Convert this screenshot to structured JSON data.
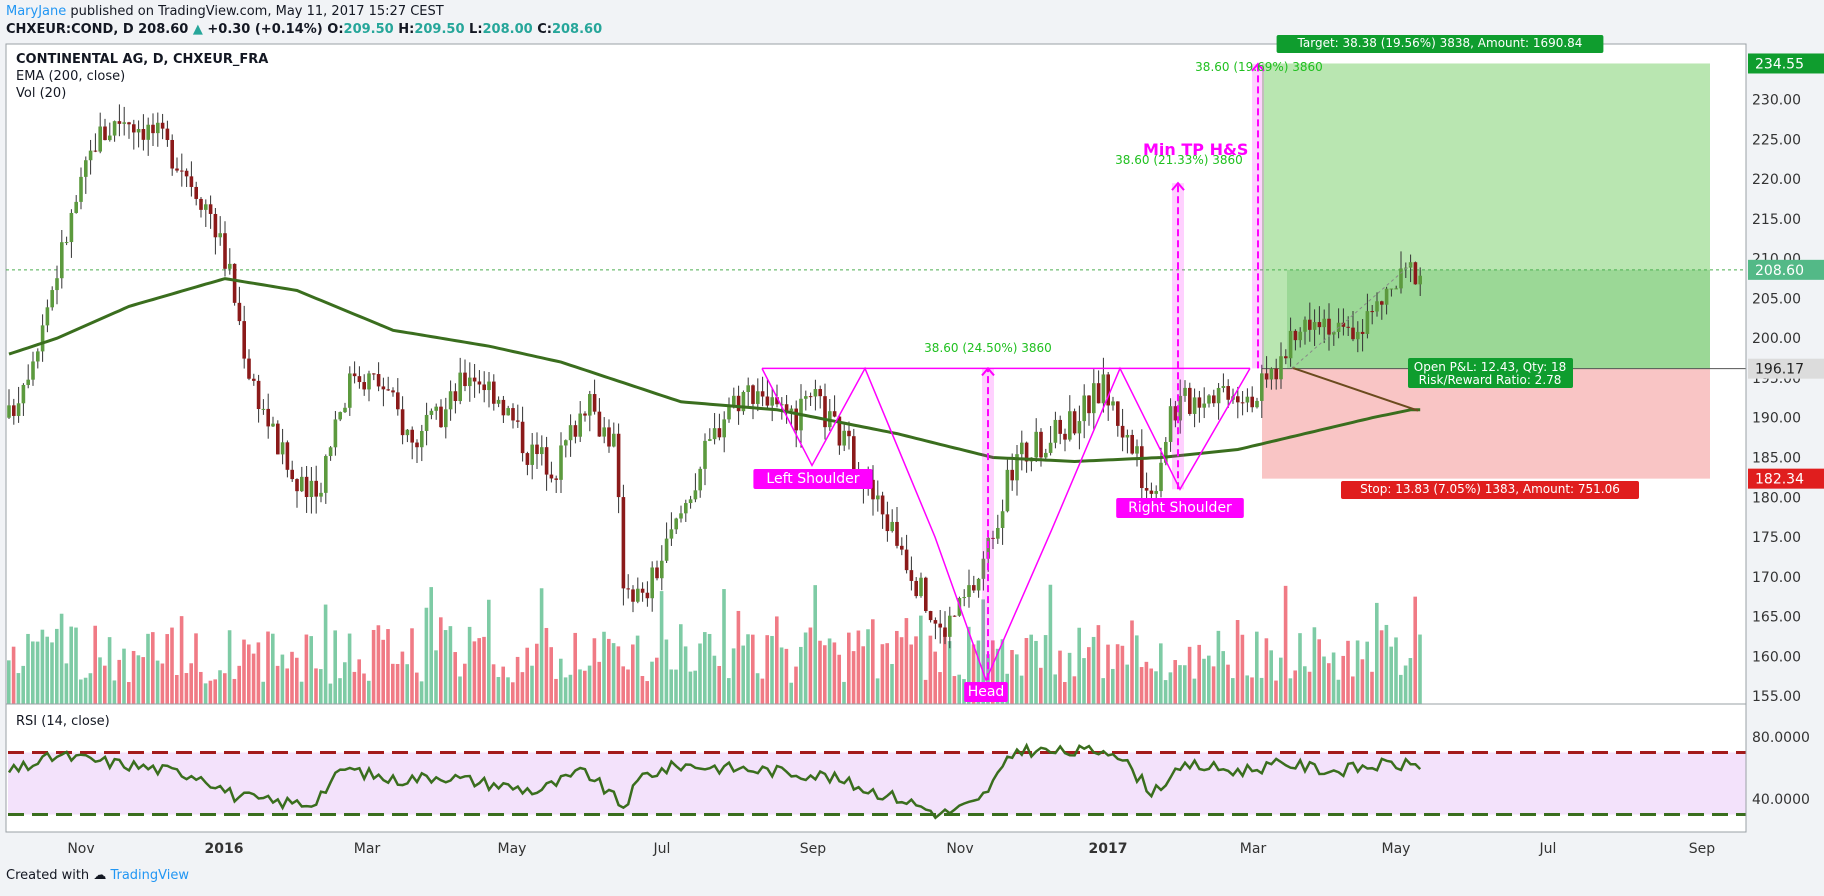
{
  "header": {
    "author": "MaryJane",
    "published": "published on TradingView.com, May 11, 2017 15:27 CEST",
    "symbol": "CHXEUR:COND, D",
    "last": "208.60",
    "change_arrow": "▲",
    "change": "+0.30 (+0.14%)",
    "o_label": "O:",
    "o": "209.50",
    "h_label": "H:",
    "h": "209.50",
    "l_label": "L:",
    "l": "208.00",
    "c_label": "C:",
    "c": "208.60"
  },
  "legend": {
    "title": "CONTINENTAL AG, D, CHXEUR_FRA",
    "ema": "EMA (200, close)",
    "vol": "Vol (20)",
    "rsi": "RSI (14, close)"
  },
  "footer": {
    "created": "Created with",
    "brand": "TradingView"
  },
  "colors": {
    "up": "#53b987",
    "down": "#eb4d5c",
    "candle_up": "#5c9a3e",
    "candle_down": "#8b1a1a",
    "ema": "#3a6e1e",
    "pattern": "#ff00ff",
    "target_zone": "#b9e6b1",
    "stop_zone": "#f9c5c5",
    "rsi_band": "#f3e2fb",
    "rsi_upper": "#a31b1b",
    "rsi_lower": "#3a6e1e"
  },
  "chart_data": {
    "type": "candlestick",
    "title": "CONTINENTAL AG, D, CHXEUR_FRA",
    "x_ticks": [
      "Nov",
      "2016",
      "Mar",
      "May",
      "Jul",
      "Sep",
      "Nov",
      "2017",
      "Mar",
      "May",
      "Jul",
      "Sep"
    ],
    "y_ticks": [
      "155.00",
      "160.00",
      "165.00",
      "170.00",
      "175.00",
      "180.00",
      "185.00",
      "190.00",
      "195.00",
      "200.00",
      "205.00",
      "210.00",
      "215.00",
      "220.00",
      "225.00",
      "230.00"
    ],
    "ylim": [
      154,
      237
    ],
    "price_path": [
      [
        0,
        190
      ],
      [
        6,
        200
      ],
      [
        12,
        213
      ],
      [
        18,
        225
      ],
      [
        24,
        228
      ],
      [
        30,
        226
      ],
      [
        36,
        222
      ],
      [
        42,
        216
      ],
      [
        46,
        208
      ],
      [
        50,
        196
      ],
      [
        55,
        188
      ],
      [
        60,
        181
      ],
      [
        64,
        180
      ],
      [
        68,
        190
      ],
      [
        72,
        196
      ],
      [
        78,
        194
      ],
      [
        84,
        187
      ],
      [
        90,
        190
      ],
      [
        96,
        196
      ],
      [
        102,
        193
      ],
      [
        108,
        186
      ],
      [
        114,
        184
      ],
      [
        120,
        192
      ],
      [
        126,
        187
      ],
      [
        128,
        170
      ],
      [
        132,
        167
      ],
      [
        138,
        175
      ],
      [
        144,
        184
      ],
      [
        150,
        192
      ],
      [
        156,
        194
      ],
      [
        162,
        189
      ],
      [
        168,
        192
      ],
      [
        174,
        187
      ],
      [
        180,
        180
      ],
      [
        186,
        174
      ],
      [
        190,
        168
      ],
      [
        194,
        163
      ],
      [
        198,
        166
      ],
      [
        202,
        170
      ],
      [
        206,
        178
      ],
      [
        210,
        185
      ],
      [
        216,
        187
      ],
      [
        222,
        190
      ],
      [
        228,
        194
      ],
      [
        234,
        186
      ],
      [
        238,
        180
      ],
      [
        242,
        191
      ],
      [
        248,
        193
      ],
      [
        254,
        194
      ],
      [
        260,
        193
      ],
      [
        266,
        198
      ],
      [
        272,
        204
      ],
      [
        278,
        200
      ],
      [
        284,
        203
      ],
      [
        288,
        206
      ],
      [
        292,
        208.6
      ]
    ],
    "ema_path": [
      [
        0,
        198
      ],
      [
        10,
        200
      ],
      [
        25,
        204
      ],
      [
        45,
        207.5
      ],
      [
        60,
        206
      ],
      [
        80,
        201
      ],
      [
        100,
        199
      ],
      [
        115,
        197
      ],
      [
        140,
        192
      ],
      [
        160,
        191
      ],
      [
        185,
        188
      ],
      [
        205,
        185
      ],
      [
        222,
        184.5
      ],
      [
        240,
        185
      ],
      [
        256,
        186
      ],
      [
        270,
        188
      ],
      [
        284,
        190
      ],
      [
        292,
        191
      ]
    ],
    "last_price": "208.60",
    "neckline_price": "196.17",
    "stop_price": "182.34",
    "target_price": "234.55",
    "rsi_ticks": [
      "80.0000",
      "40.0000"
    ],
    "rsi_ylim": [
      20,
      100
    ],
    "rsi_levels": [
      70,
      30
    ],
    "rsi_path": [
      [
        0,
        57
      ],
      [
        10,
        68
      ],
      [
        25,
        62
      ],
      [
        40,
        55
      ],
      [
        47,
        42
      ],
      [
        55,
        38
      ],
      [
        63,
        37
      ],
      [
        70,
        60
      ],
      [
        80,
        52
      ],
      [
        90,
        55
      ],
      [
        100,
        50
      ],
      [
        110,
        45
      ],
      [
        120,
        58
      ],
      [
        128,
        35
      ],
      [
        132,
        55
      ],
      [
        140,
        62
      ],
      [
        150,
        60
      ],
      [
        160,
        58
      ],
      [
        170,
        55
      ],
      [
        180,
        45
      ],
      [
        186,
        40
      ],
      [
        194,
        30
      ],
      [
        202,
        38
      ],
      [
        210,
        72
      ],
      [
        220,
        70
      ],
      [
        230,
        72
      ],
      [
        238,
        45
      ],
      [
        246,
        62
      ],
      [
        256,
        58
      ],
      [
        266,
        63
      ],
      [
        276,
        58
      ],
      [
        286,
        62
      ],
      [
        292,
        62
      ]
    ],
    "annotations": {
      "left_shoulder": "Left Shoulder",
      "head": "Head",
      "right_shoulder": "Right Shoulder",
      "min_tp": "Min TP H&S",
      "measure1": "38.60 (24.50%) 3860",
      "measure2": "38.60 (21.33%) 3860",
      "measure3": "38.60 (19.69%) 3860",
      "target": "Target: 38.38 (19.56%) 3838, Amount: 1690.84",
      "open_pl": "Open P&L: 12.43, Qty: 18",
      "risk_reward": "Risk/Reward Ratio: 2.78",
      "stop": "Stop: 13.83 (7.05%) 1383, Amount: 751.06"
    }
  }
}
